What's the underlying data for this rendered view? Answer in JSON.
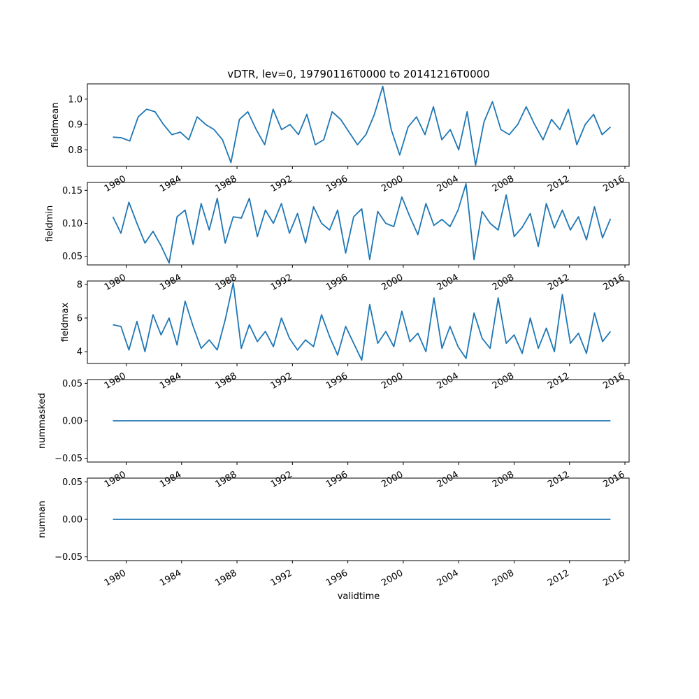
{
  "figure": {
    "title": "vDTR, lev=0, 19790116T0000 to 20141216T0000",
    "xlabel": "validtime",
    "line_color": "#1f77b4"
  },
  "chart_data": [
    {
      "type": "line",
      "ylabel": "fieldmean",
      "xlim": [
        1977.2,
        2016.3
      ],
      "ylim": [
        0.735,
        1.06
      ],
      "x_ticks": [
        "1980",
        "1984",
        "1988",
        "1992",
        "1996",
        "2000",
        "2004",
        "2008",
        "2012",
        "2016"
      ],
      "y_ticks": [
        "0.8",
        "0.9",
        "1.0"
      ],
      "y_tick_values": [
        0.8,
        0.9,
        1.0
      ],
      "x_start": 1979.04,
      "x_end": 2014.96,
      "base": 0.895,
      "amplitude": 0.055,
      "noise": 0.035,
      "seed": 11,
      "values": [
        0.85,
        0.848,
        0.835,
        0.93,
        0.96,
        0.95,
        0.9,
        0.86,
        0.87,
        0.84,
        0.93,
        0.9,
        0.88,
        0.84,
        0.75,
        0.92,
        0.95,
        0.88,
        0.82,
        0.96,
        0.88,
        0.9,
        0.86,
        0.94,
        0.82,
        0.84,
        0.95,
        0.92,
        0.87,
        0.82,
        0.86,
        0.94,
        1.05,
        0.88,
        0.78,
        0.89,
        0.93,
        0.86,
        0.97,
        0.84,
        0.88,
        0.8,
        0.95,
        0.74,
        0.91,
        0.99,
        0.88,
        0.86,
        0.9,
        0.97,
        0.9,
        0.84,
        0.92,
        0.88,
        0.96,
        0.82,
        0.9,
        0.94,
        0.86,
        0.89
      ]
    },
    {
      "type": "line",
      "ylabel": "fieldmin",
      "xlim": [
        1977.2,
        2016.3
      ],
      "ylim": [
        0.037,
        0.162
      ],
      "x_ticks": [
        "1980",
        "1984",
        "1988",
        "1992",
        "1996",
        "2000",
        "2004",
        "2008",
        "2012",
        "2016"
      ],
      "y_ticks": [
        "0.05",
        "0.10",
        "0.15"
      ],
      "y_tick_values": [
        0.05,
        0.1,
        0.15
      ],
      "x_start": 1979.04,
      "x_end": 2014.96,
      "base": 0.094,
      "amplitude": 0.015,
      "noise": 0.017,
      "seed": 23,
      "values": [
        0.11,
        0.085,
        0.132,
        0.1,
        0.07,
        0.088,
        0.066,
        0.04,
        0.11,
        0.12,
        0.068,
        0.13,
        0.09,
        0.138,
        0.07,
        0.11,
        0.108,
        0.138,
        0.08,
        0.12,
        0.1,
        0.13,
        0.085,
        0.115,
        0.07,
        0.125,
        0.1,
        0.09,
        0.12,
        0.055,
        0.11,
        0.122,
        0.045,
        0.118,
        0.1,
        0.095,
        0.14,
        0.11,
        0.083,
        0.13,
        0.097,
        0.106,
        0.095,
        0.12,
        0.16,
        0.045,
        0.118,
        0.1,
        0.09,
        0.143,
        0.08,
        0.094,
        0.115,
        0.065,
        0.13,
        0.093,
        0.12,
        0.09,
        0.11,
        0.075,
        0.125,
        0.078,
        0.107
      ]
    },
    {
      "type": "line",
      "ylabel": "fieldmax",
      "xlim": [
        1977.2,
        2016.3
      ],
      "ylim": [
        3.3,
        8.2
      ],
      "x_ticks": [
        "1980",
        "1984",
        "1988",
        "1992",
        "1996",
        "2000",
        "2004",
        "2008",
        "2012",
        "2016"
      ],
      "y_ticks": [
        "4",
        "6",
        "8"
      ],
      "y_tick_values": [
        4,
        6,
        8
      ],
      "x_start": 1979.04,
      "x_end": 2014.96,
      "base": 4.9,
      "amplitude": 0.9,
      "noise": 0.5,
      "seed": 37,
      "values": [
        5.6,
        5.5,
        4.1,
        5.8,
        4.0,
        6.2,
        5.0,
        6.0,
        4.4,
        7.0,
        5.5,
        4.2,
        4.7,
        4.1,
        5.9,
        8.1,
        4.2,
        5.6,
        4.6,
        5.2,
        4.3,
        6.0,
        4.8,
        4.1,
        4.7,
        4.3,
        6.2,
        4.9,
        3.8,
        5.5,
        4.5,
        3.5,
        6.8,
        4.5,
        5.2,
        4.3,
        6.4,
        4.6,
        5.1,
        4.0,
        7.2,
        4.2,
        5.5,
        4.3,
        3.6,
        6.3,
        4.8,
        4.2,
        7.2,
        4.5,
        5.0,
        3.9,
        6.0,
        4.2,
        5.4,
        4.0,
        7.4,
        4.5,
        5.1,
        3.9,
        6.3,
        4.6,
        5.2
      ]
    },
    {
      "type": "line",
      "ylabel": "nummasked",
      "xlim": [
        1977.2,
        2016.3
      ],
      "ylim": [
        -0.055,
        0.055
      ],
      "x_ticks": [
        "1980",
        "1984",
        "1988",
        "1992",
        "1996",
        "2000",
        "2004",
        "2008",
        "2012",
        "2016"
      ],
      "y_ticks": [
        "−0.05",
        "0.00",
        "0.05"
      ],
      "y_tick_values": [
        -0.05,
        0.0,
        0.05
      ],
      "x_start": 1979.04,
      "x_end": 2014.96,
      "values": [
        0,
        0
      ]
    },
    {
      "type": "line",
      "ylabel": "numnan",
      "xlim": [
        1977.2,
        2016.3
      ],
      "ylim": [
        -0.055,
        0.055
      ],
      "x_ticks": [
        "1980",
        "1984",
        "1988",
        "1992",
        "1996",
        "2000",
        "2004",
        "2008",
        "2012",
        "2016"
      ],
      "y_ticks": [
        "−0.05",
        "0.00",
        "0.05"
      ],
      "y_tick_values": [
        -0.05,
        0.0,
        0.05
      ],
      "x_start": 1979.04,
      "x_end": 2014.96,
      "values": [
        0,
        0
      ]
    }
  ]
}
